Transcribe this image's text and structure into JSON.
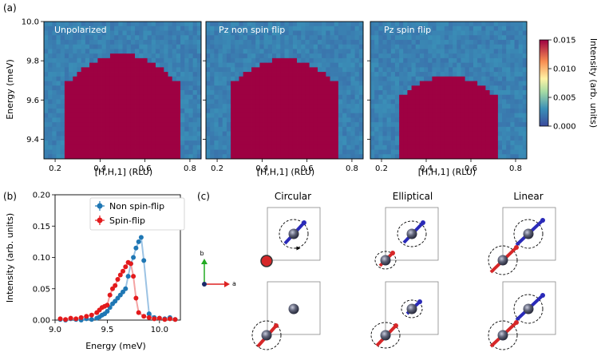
{
  "panel_labels": {
    "a": "(a)",
    "b": "(b)",
    "c": "(c)"
  },
  "colors": {
    "unpolarized_series": "#1f77b4",
    "spin_flip_series": "#e31a1c",
    "moment_red": "#d62728",
    "moment_blue": "#1f1fb4",
    "axis_b": "#22aa22",
    "axis_a": "#dd2222"
  },
  "chart_data": [
    {
      "type": "heatmap",
      "panel": "a",
      "title": "Unpolarized",
      "xlabel": "[H,H,1] (RLU)",
      "ylabel": "Energy (meV)",
      "xlim": [
        0.15,
        0.85
      ],
      "ylim": [
        9.3,
        10.0
      ],
      "xticks": [
        "0.2",
        "0.4",
        "0.6",
        "0.8"
      ],
      "yticks": [
        "9.4",
        "9.6",
        "9.8",
        "10.0"
      ],
      "dispersion": {
        "center_h": 0.5,
        "top_energy": 9.78,
        "curvature": 2.3,
        "half_width_h": 0.22
      },
      "peak_intensity": 0.014
    },
    {
      "type": "heatmap",
      "panel": "a",
      "title": "Pz non spin flip",
      "xlabel": "[H,H,1] (RLU)",
      "xlim": [
        0.15,
        0.85
      ],
      "ylim": [
        9.3,
        10.0
      ],
      "xticks": [
        "0.2",
        "0.4",
        "0.6",
        "0.8"
      ],
      "dispersion": {
        "center_h": 0.5,
        "top_energy": 9.76,
        "curvature": 2.3,
        "half_width_h": 0.2
      },
      "peak_intensity": 0.0125
    },
    {
      "type": "heatmap",
      "panel": "a",
      "title": "Pz spin flip",
      "xlabel": "[H,H,1] (RLU)",
      "xlim": [
        0.15,
        0.85
      ],
      "ylim": [
        9.3,
        10.0
      ],
      "xticks": [
        "0.2",
        "0.4",
        "0.6",
        "0.8"
      ],
      "dispersion": {
        "center_h": 0.5,
        "top_energy": 9.67,
        "curvature": 2.3,
        "half_width_h": 0.18
      },
      "peak_intensity": 0.0095,
      "colorbar": {
        "label": "Intensity (arb. units)",
        "range": [
          0.0,
          0.015
        ],
        "ticks": [
          "0.000",
          "0.005",
          "0.010",
          "0.015"
        ]
      }
    },
    {
      "type": "line",
      "panel": "b",
      "xlabel": "Energy (meV)",
      "ylabel": "Intensity (arb. units)",
      "xlim": [
        9.0,
        10.2
      ],
      "ylim": [
        0.0,
        0.2
      ],
      "xticks": [
        "9.0",
        "9.5",
        "10.0"
      ],
      "yticks": [
        "0.00",
        "0.05",
        "0.10",
        "0.15",
        "0.20"
      ],
      "legend_position": "top-right",
      "series": [
        {
          "name": "Non spin-flip",
          "color": "#1f77b4",
          "x": [
            9.05,
            9.1,
            9.15,
            9.2,
            9.25,
            9.3,
            9.35,
            9.4,
            9.425,
            9.45,
            9.475,
            9.5,
            9.525,
            9.55,
            9.575,
            9.6,
            9.625,
            9.65,
            9.675,
            9.7,
            9.725,
            9.75,
            9.775,
            9.8,
            9.825,
            9.85,
            9.9,
            9.95,
            10.0,
            10.05,
            10.1,
            10.15
          ],
          "y": [
            0.001,
            0.0,
            0.002,
            0.001,
            0.0,
            0.002,
            0.001,
            0.003,
            0.005,
            0.008,
            0.01,
            0.014,
            0.02,
            0.026,
            0.03,
            0.035,
            0.04,
            0.045,
            0.05,
            0.07,
            0.09,
            0.1,
            0.115,
            0.125,
            0.132,
            0.095,
            0.01,
            0.004,
            0.003,
            0.002,
            0.004,
            0.001
          ]
        },
        {
          "name": "Spin-flip",
          "color": "#e31a1c",
          "x": [
            9.05,
            9.1,
            9.15,
            9.2,
            9.25,
            9.3,
            9.35,
            9.4,
            9.425,
            9.45,
            9.475,
            9.5,
            9.525,
            9.55,
            9.575,
            9.6,
            9.625,
            9.65,
            9.675,
            9.7,
            9.725,
            9.75,
            9.775,
            9.8,
            9.85,
            9.9,
            9.95,
            10.0,
            10.05,
            10.1,
            10.15
          ],
          "y": [
            0.002,
            0.001,
            0.003,
            0.002,
            0.004,
            0.006,
            0.008,
            0.012,
            0.016,
            0.02,
            0.022,
            0.024,
            0.04,
            0.05,
            0.055,
            0.065,
            0.072,
            0.078,
            0.085,
            0.092,
            0.09,
            0.07,
            0.035,
            0.012,
            0.006,
            0.004,
            0.002,
            0.003,
            0.001,
            0.002,
            0.001
          ]
        }
      ]
    }
  ],
  "diagram": {
    "column_titles": [
      "Circular",
      "Elliptical",
      "Linear"
    ],
    "axis_labels": {
      "b": "b",
      "a": "a"
    }
  }
}
